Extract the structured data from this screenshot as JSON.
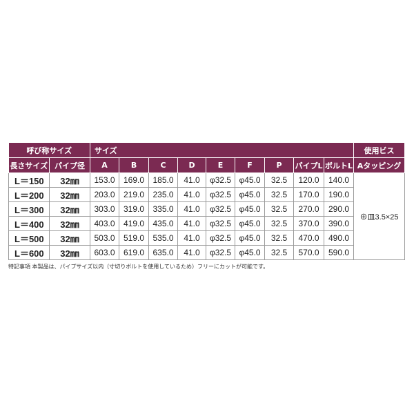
{
  "header": {
    "group_name": "呼び称サイズ",
    "group_size": "サイズ",
    "group_screw": "使用ビス",
    "columns": [
      "長さサイズ",
      "パイプ径",
      "A",
      "B",
      "C",
      "D",
      "E",
      "F",
      "P",
      "パイプL",
      "ボルトL",
      "Aタッピング"
    ]
  },
  "rows": [
    [
      "L＝150",
      "32㎜",
      "153.0",
      "169.0",
      "185.0",
      "41.0",
      "φ32.5",
      "φ45.0",
      "32.5",
      "120.0",
      "140.0"
    ],
    [
      "L＝200",
      "32㎜",
      "203.0",
      "219.0",
      "235.0",
      "41.0",
      "φ32.5",
      "φ45.0",
      "32.5",
      "170.0",
      "190.0"
    ],
    [
      "L＝300",
      "32㎜",
      "303.0",
      "319.0",
      "335.0",
      "41.0",
      "φ32.5",
      "φ45.0",
      "32.5",
      "270.0",
      "290.0"
    ],
    [
      "L＝400",
      "32㎜",
      "403.0",
      "419.0",
      "435.0",
      "41.0",
      "φ32.5",
      "φ45.0",
      "32.5",
      "370.0",
      "390.0"
    ],
    [
      "L＝500",
      "32㎜",
      "503.0",
      "519.0",
      "535.0",
      "41.0",
      "φ32.5",
      "φ45.0",
      "32.5",
      "470.0",
      "490.0"
    ],
    [
      "L＝600",
      "32㎜",
      "603.0",
      "619.0",
      "635.0",
      "41.0",
      "φ32.5",
      "φ45.0",
      "32.5",
      "570.0",
      "590.0"
    ]
  ],
  "screw_value": "⊕皿3.5×25",
  "note": "特記事項 本製品は、パイプサイズ以内（寸切りボルトを使用しているため）フリーにカットが可能です。",
  "colors": {
    "header_bg": "#7b2a52",
    "header_text": "#ffffff"
  }
}
